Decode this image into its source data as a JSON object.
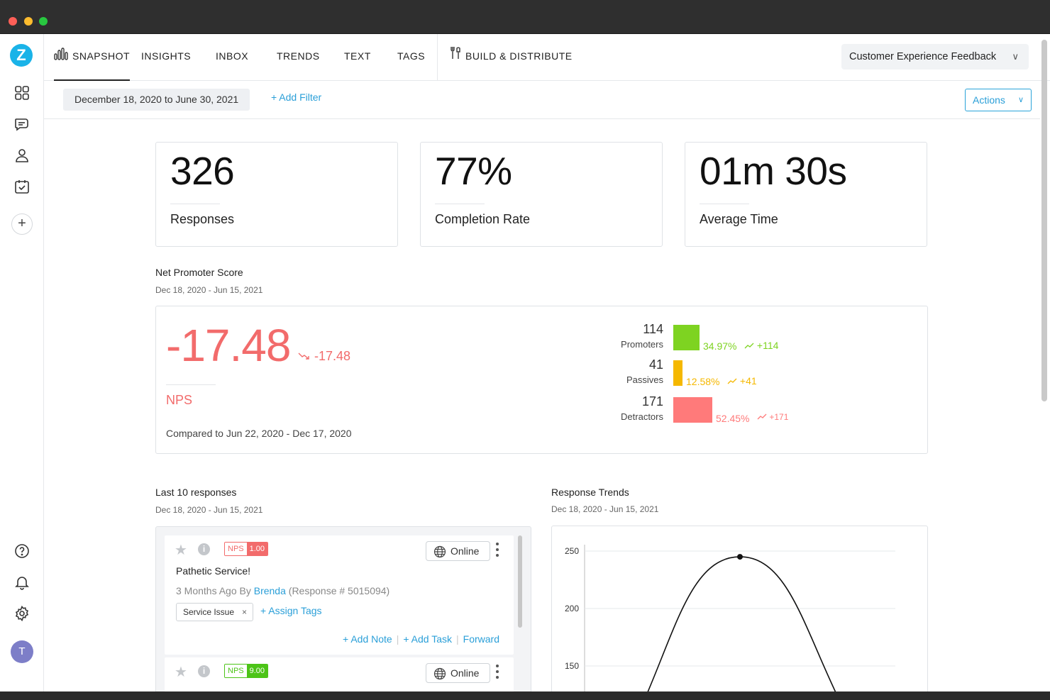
{
  "colors": {
    "accent": "#2a9fd8",
    "promoter": "#7ed321",
    "passive": "#f5b800",
    "detractor": "#ff7a7a",
    "nps_negative": "#f26b6b"
  },
  "sidebar": {
    "logo_letter": "Z",
    "avatar_letter": "T",
    "add_symbol": "+",
    "icons": [
      "dashboard-icon",
      "surveys-chat-icon",
      "contacts-user-icon",
      "calendar-check-icon",
      "help-icon",
      "notifications-bell-icon",
      "settings-gear-icon"
    ]
  },
  "nav": {
    "tabs": [
      {
        "label": "SNAPSHOT",
        "icon": "bar-chart-icon",
        "active": true
      },
      {
        "label": "INSIGHTS"
      },
      {
        "label": "INBOX"
      },
      {
        "label": "TRENDS"
      },
      {
        "label": "TEXT"
      },
      {
        "label": "TAGS"
      }
    ],
    "build_label": "BUILD & DISTRIBUTE",
    "survey_name": "Customer Experience Feedback"
  },
  "filters": {
    "date_range": "December 18, 2020 to June 30, 2021",
    "add_filter": "+ Add Filter",
    "actions": "Actions"
  },
  "stats": [
    {
      "value": "326",
      "label": "Responses"
    },
    {
      "value": "77%",
      "label": "Completion Rate"
    },
    {
      "value": "01m 30s",
      "label": "Average Time"
    }
  ],
  "nps": {
    "section_title": "Net Promoter Score",
    "section_range": "Dec 18, 2020 - Jun 15, 2021",
    "score": "-17.48",
    "change": "-17.48",
    "label": "NPS",
    "compared": "Compared to Jun 22, 2020 - Dec 17, 2020",
    "breakdown": [
      {
        "count": "114",
        "name": "Promoters",
        "pct": "34.97%",
        "trend": "+114",
        "fraction": 0.3497
      },
      {
        "count": "41",
        "name": "Passives",
        "pct": "12.58%",
        "trend": "+41",
        "fraction": 0.1258
      },
      {
        "count": "171",
        "name": "Detractors",
        "pct": "52.45%",
        "trend": "+171",
        "fraction": 0.5245
      }
    ]
  },
  "responses": {
    "section_title": "Last 10 responses",
    "section_range": "Dec 18, 2020 - Jun 15, 2021",
    "items": [
      {
        "nps_key": "NPS",
        "nps_value": "1.00",
        "channel": "Online",
        "title": "Pathetic Service!",
        "meta_prefix": "3 Months Ago By ",
        "author": "Brenda",
        "response_ref": " (Response # 5015094)",
        "tag": "Service Issue",
        "tag_remove": "×",
        "assign_tags": "+ Assign Tags",
        "add_note": "+ Add Note",
        "add_task": "+ Add Task",
        "forward": "Forward"
      },
      {
        "nps_key": "NPS",
        "nps_value": "9.00",
        "channel": "Online"
      }
    ]
  },
  "trends": {
    "section_title": "Response Trends",
    "section_range": "Dec 18, 2020 - Jun 15, 2021"
  },
  "chart_data": {
    "type": "line",
    "title": "Response Trends",
    "xlabel": "",
    "ylabel": "",
    "y_ticks": [
      150,
      200,
      250
    ],
    "ylim": [
      130,
      262
    ],
    "grid": true,
    "series": [
      {
        "values": [
          {
            "x": 0.0,
            "y": 110
          },
          {
            "x": 0.5,
            "y": 245
          },
          {
            "x": 1.0,
            "y": 110
          }
        ],
        "peak": {
          "x": 0.5,
          "y": 245
        }
      }
    ]
  }
}
